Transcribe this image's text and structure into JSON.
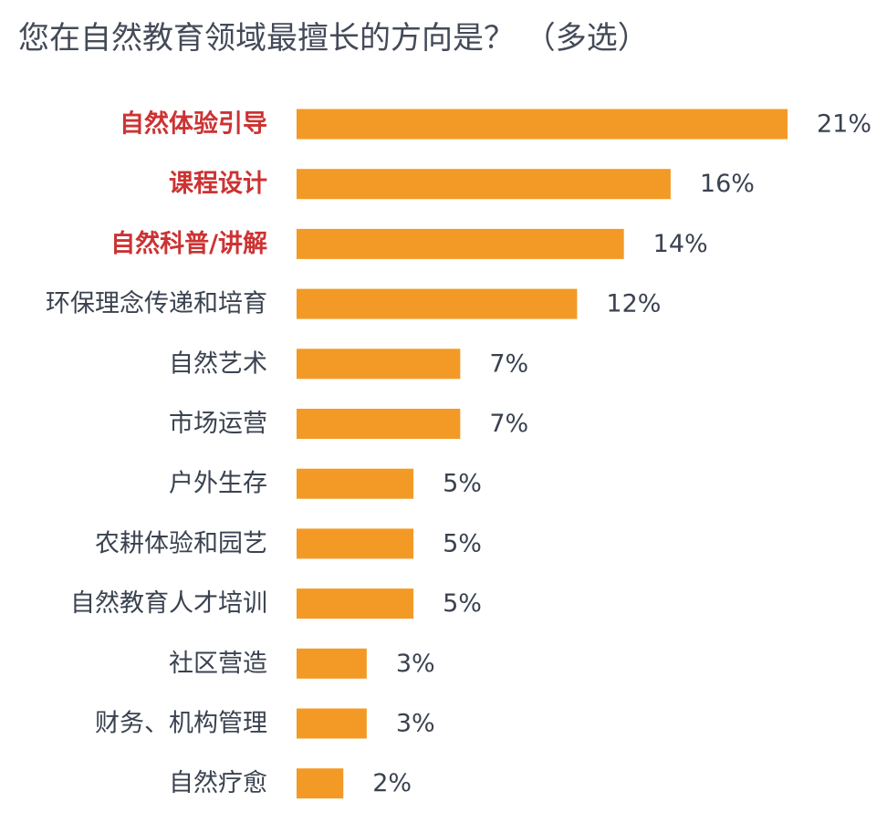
{
  "title": "您在自然教育领域最擅长的方向是？ （多选）",
  "chart_data": {
    "type": "bar",
    "orientation": "horizontal",
    "title": "您在自然教育领域最擅长的方向是？ （多选）",
    "categories": [
      "自然体验引导",
      "课程设计",
      "自然科普/讲解",
      "环保理念传递和培育",
      "自然艺术",
      "市场运营",
      "户外生存",
      "农耕体验和园艺",
      "自然教育人才培训",
      "社区营造",
      "财务、机构管理",
      "自然疗愈"
    ],
    "values": [
      21,
      16,
      14,
      12,
      7,
      7,
      5,
      5,
      5,
      3,
      3,
      2
    ],
    "value_labels": [
      "21%",
      "16%",
      "14%",
      "12%",
      "7%",
      "7%",
      "5%",
      "5%",
      "5%",
      "3%",
      "3%",
      "2%"
    ],
    "highlighted_categories": [
      "自然体验引导",
      "课程设计",
      "自然科普/讲解"
    ],
    "unit": "%",
    "xlim": [
      0,
      21
    ],
    "grid": false,
    "legend": "none",
    "colors": {
      "bar": "#f39a26",
      "highlight_label": "#cc3333",
      "label": "#3a4250",
      "title": "#444a58"
    }
  }
}
